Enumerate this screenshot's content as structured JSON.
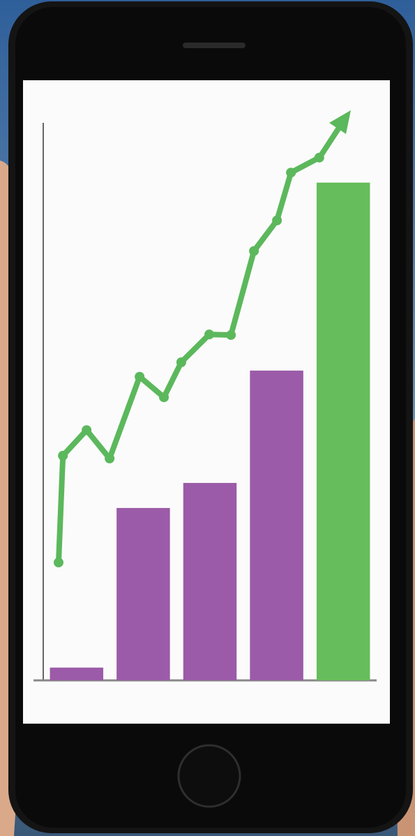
{
  "chart_data": [
    {
      "type": "bar",
      "categories": [
        null,
        null,
        null,
        null,
        null
      ],
      "values": [
        2.3,
        31,
        35.5,
        55.7,
        89.5
      ],
      "colors": [
        "#9b5ba8",
        "#9b5ba8",
        "#9b5ba8",
        "#9b5ba8",
        "#66bd5b"
      ],
      "ylim": [
        0,
        100
      ]
    },
    {
      "type": "line",
      "x": [
        4.6,
        5.9,
        13.0,
        19.9,
        28.9,
        36.2,
        41.4,
        49.8,
        56.3,
        63.2,
        70.1,
        74.3,
        82.8
      ],
      "values": [
        21.2,
        40.4,
        45.0,
        39.9,
        54.6,
        50.9,
        57.2,
        62.2,
        62.1,
        77.2,
        82.7,
        91.3,
        94.0
      ],
      "color": "#5cb85c",
      "xlim": [
        0,
        100
      ],
      "ylim": [
        0,
        100
      ]
    }
  ]
}
